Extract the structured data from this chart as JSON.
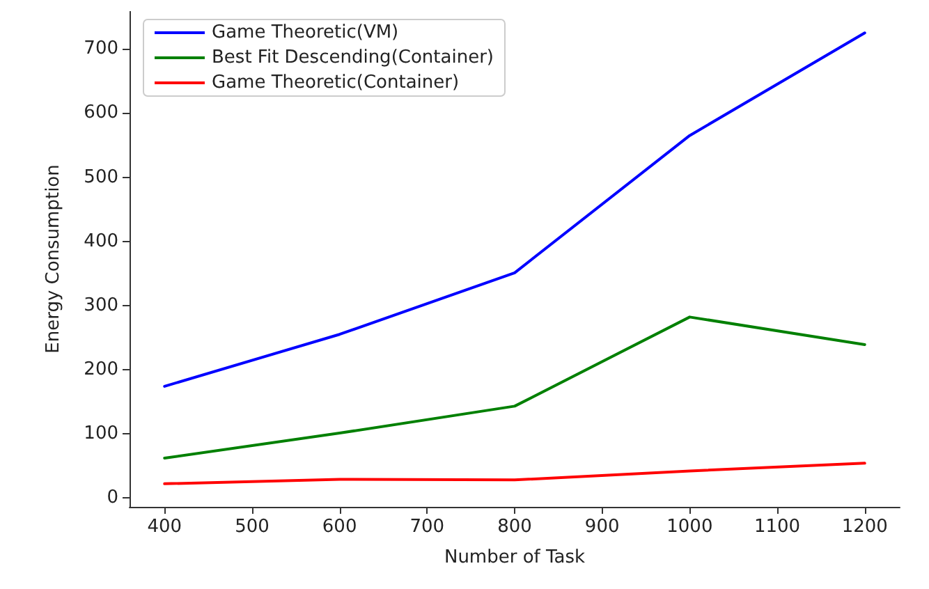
{
  "chart_data": {
    "type": "line",
    "xlabel": "Number of Task",
    "ylabel": "Energy Consumption",
    "x": [
      400,
      600,
      800,
      1000,
      1200
    ],
    "series": [
      {
        "name": "Game Theoretic(VM)",
        "color": "#0000ff",
        "values": [
          174,
          255,
          351,
          565,
          725
        ]
      },
      {
        "name": "Best Fit Descending(Container)",
        "color": "#008000",
        "values": [
          62,
          101,
          143,
          282,
          239
        ]
      },
      {
        "name": "Game Theoretic(Container)",
        "color": "#ff0000",
        "values": [
          22,
          29,
          28,
          42,
          54
        ]
      }
    ],
    "xlim": [
      360,
      1240
    ],
    "xticks": [
      400,
      500,
      600,
      700,
      800,
      900,
      1000,
      1100,
      1200
    ],
    "ylim": [
      -14,
      759
    ],
    "yticks": [
      0,
      100,
      200,
      300,
      400,
      500,
      600,
      700
    ],
    "grid": false,
    "legend": "top left",
    "marker": "none",
    "line_style": "solid"
  }
}
